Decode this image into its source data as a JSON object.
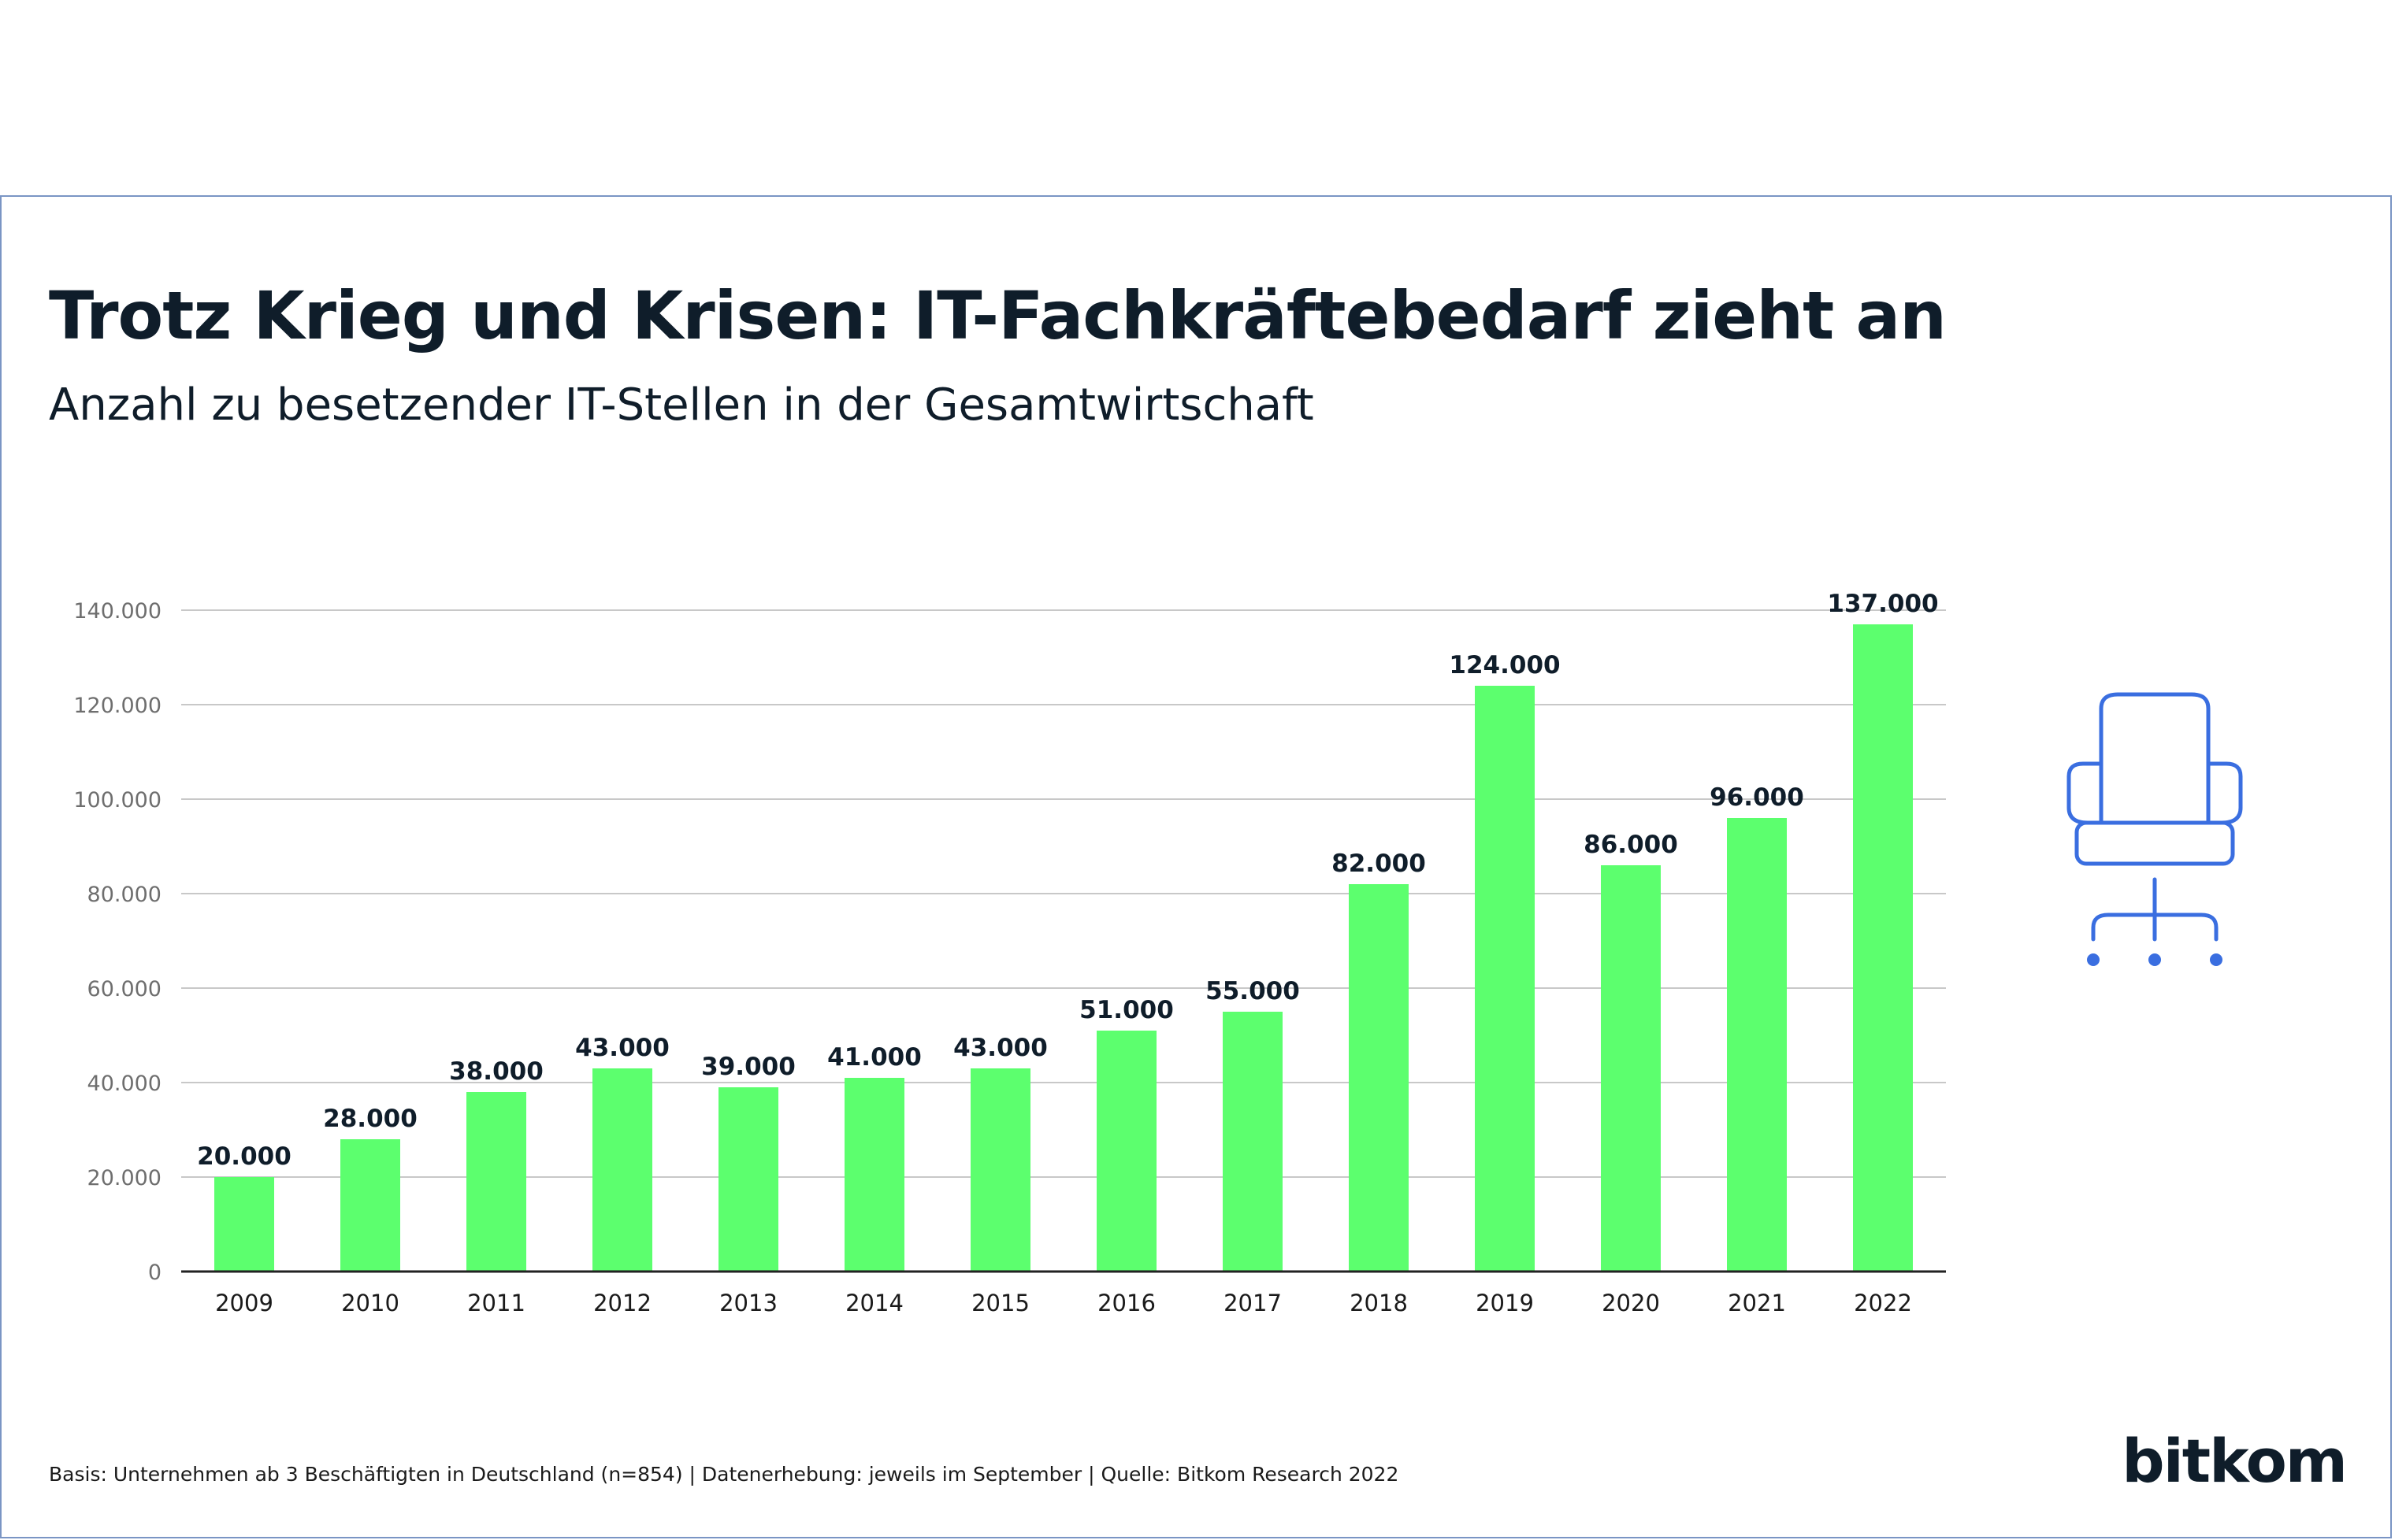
{
  "header": {
    "title": "Trotz Krieg und Krisen: IT-Fachkräftebedarf zieht an",
    "subtitle": "Anzahl zu besetzender IT-Stellen in der Gesamtwirtschaft"
  },
  "chart_data": {
    "type": "bar",
    "title": "Trotz Krieg und Krisen: IT-Fachkräftebedarf zieht an",
    "subtitle": "Anzahl zu besetzender IT-Stellen in der Gesamtwirtschaft",
    "xlabel": "",
    "ylabel": "",
    "categories": [
      "2009",
      "2010",
      "2011",
      "2012",
      "2013",
      "2014",
      "2015",
      "2016",
      "2017",
      "2018",
      "2019",
      "2020",
      "2021",
      "2022"
    ],
    "values": [
      20000,
      28000,
      38000,
      43000,
      39000,
      41000,
      43000,
      51000,
      55000,
      82000,
      124000,
      86000,
      96000,
      137000
    ],
    "data_labels": [
      "20.000",
      "28.000",
      "38.000",
      "43.000",
      "39.000",
      "41.000",
      "43.000",
      "51.000",
      "55.000",
      "82.000",
      "124.000",
      "86.000",
      "96.000",
      "137.000"
    ],
    "ylim": [
      0,
      140000
    ],
    "yticks": [
      0,
      20000,
      40000,
      60000,
      80000,
      100000,
      120000,
      140000
    ],
    "ytick_labels": [
      "0",
      "20.000",
      "40.000",
      "60.000",
      "80.000",
      "100.000",
      "120.000",
      "140.000"
    ],
    "grid": true,
    "legend": "none",
    "bar_color": "#5cff6e"
  },
  "icon": {
    "name": "office-chair-icon",
    "color": "#3a6ee0"
  },
  "footer": {
    "source": "Basis: Unternehmen ab 3 Beschäftigten in Deutschland (n=854) | Datenerhebung: jeweils im September | Quelle: Bitkom Research 2022"
  },
  "brand": {
    "logo": "bitkom"
  },
  "colors": {
    "text": "#0f1d2a",
    "border": "#7a95c4",
    "grid": "#c8c8c8",
    "axis": "#222222"
  }
}
